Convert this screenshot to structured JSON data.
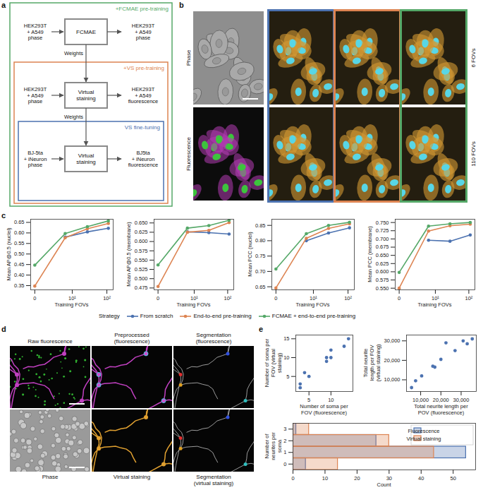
{
  "panels": {
    "a": {
      "letter": "a",
      "boxes": [
        {
          "title": "+FCMAE pre-training",
          "color": "#55A868",
          "input": "HEK293T + A549 phase",
          "model": "FCMAE",
          "output": "HEK293T + A549 phase",
          "weights": "Weights"
        },
        {
          "title": "+VS pre-training",
          "color": "#DD8452",
          "input": "HEK293T + A549 phase",
          "model": "Virtual staining",
          "output": "HEK293T + A549 fluorescence",
          "weights": "Weights"
        },
        {
          "title": "VS fine-tuning",
          "color": "#4C72B0",
          "input": "BJ-5ta + iNeuron phase",
          "model": "Virtual staining",
          "output": "BJ5ta + iNeuron fluorescence"
        }
      ]
    },
    "b": {
      "letter": "b",
      "left_labels": [
        "Phase",
        "Fluorescence"
      ],
      "row_labels": [
        "6 FOVs",
        "110 FOVs"
      ],
      "column_colors": [
        "#4C72B0",
        "#DD8452",
        "#55A868"
      ]
    },
    "c": {
      "letter": "c"
    },
    "d": {
      "letter": "d",
      "images": [
        "Raw fluorescence",
        "Preprocessed (fluorescence)",
        "Segmentation (fluorescence)",
        "Phase",
        "Virtual staining",
        "Segmentation (virtual staining)"
      ]
    },
    "e": {
      "letter": "e"
    }
  },
  "chart_data": [
    {
      "type": "line",
      "xlabel": "Training FOVs",
      "ylabel": "Mean AP@0.5 (nuclei)",
      "x": [
        0,
        6,
        28,
        110
      ],
      "log": "x",
      "xlim": [
        -0.3,
        150
      ],
      "xticks": [
        0,
        {
          "value": 10,
          "label": "10¹"
        },
        {
          "value": 100,
          "label": "10²"
        }
      ],
      "ylim": [
        0.33,
        0.665
      ],
      "yticks": [
        0.35,
        {
          "value": 0.4,
          "label": "0.40"
        },
        0.45,
        {
          "value": 0.5,
          "label": "0.50"
        },
        0.55,
        {
          "value": 0.6,
          "label": "0.60"
        },
        0.65
      ],
      "grid": false,
      "series": [
        {
          "name": "From scratch",
          "color": "#4C72B0",
          "marker": "circle",
          "values": [
            null,
            0.58,
            0.605,
            0.622
          ]
        },
        {
          "name": "End-to-end pre-training",
          "color": "#DD8452",
          "marker": "circle",
          "values": [
            0.348,
            0.577,
            0.62,
            0.645
          ]
        },
        {
          "name": "FCMAE + end-to-end pre-training",
          "color": "#55A868",
          "marker": "circle",
          "values": [
            0.447,
            0.597,
            0.63,
            0.657
          ]
        }
      ]
    },
    {
      "type": "line",
      "xlabel": "Training FOVs",
      "ylabel": "Mean AP@0.5 (membrane)",
      "x": [
        0,
        6,
        28,
        110
      ],
      "log": "x",
      "xlim": [
        -0.3,
        150
      ],
      "xticks": [
        0,
        {
          "value": 10,
          "label": "10¹"
        },
        {
          "value": 100,
          "label": "10²"
        }
      ],
      "ylim": [
        0.47,
        0.66
      ],
      "yticks": [
        0.475,
        {
          "value": 0.5,
          "label": "0.500"
        },
        0.525,
        {
          "value": 0.55,
          "label": "0.550"
        },
        0.575,
        {
          "value": 0.6,
          "label": "0.600"
        },
        0.625,
        {
          "value": 0.65,
          "label": "0.650"
        }
      ],
      "grid": false,
      "series": [
        {
          "name": "From scratch",
          "color": "#4C72B0",
          "marker": "circle",
          "values": [
            null,
            0.626,
            0.624,
            0.62
          ]
        },
        {
          "name": "End-to-end pre-training",
          "color": "#DD8452",
          "marker": "circle",
          "values": [
            0.479,
            0.625,
            0.63,
            0.651
          ]
        },
        {
          "name": "FCMAE + end-to-end pre-training",
          "color": "#55A868",
          "marker": "circle",
          "values": [
            0.537,
            0.636,
            0.643,
            0.657
          ]
        }
      ]
    },
    {
      "type": "line",
      "xlabel": "Training FOVs",
      "ylabel": "Mean PCC (nuclei)",
      "x": [
        0,
        6,
        28,
        110
      ],
      "log": "x",
      "xlim": [
        -0.3,
        150
      ],
      "xticks": [
        0,
        {
          "value": 10,
          "label": "10¹"
        },
        {
          "value": 100,
          "label": "10²"
        }
      ],
      "ylim": [
        0.64,
        0.87
      ],
      "yticks": [
        0.65,
        {
          "value": 0.7,
          "label": "0.70"
        },
        0.75,
        {
          "value": 0.8,
          "label": "0.80"
        },
        0.85
      ],
      "grid": false,
      "series": [
        {
          "name": "From scratch",
          "color": "#4C72B0",
          "marker": "circle",
          "values": [
            null,
            0.8,
            0.825,
            0.842
          ]
        },
        {
          "name": "End-to-end pre-training",
          "color": "#DD8452",
          "marker": "circle",
          "values": [
            0.646,
            0.808,
            0.84,
            0.855
          ]
        },
        {
          "name": "FCMAE + end-to-end pre-training",
          "color": "#55A868",
          "marker": "circle",
          "values": [
            0.708,
            0.823,
            0.85,
            0.86
          ]
        }
      ]
    },
    {
      "type": "line",
      "xlabel": "Training FOVs",
      "ylabel": "Mean PCC (membrane)",
      "x": [
        0,
        6,
        28,
        110
      ],
      "log": "x",
      "xlim": [
        -0.3,
        150
      ],
      "xticks": [
        0,
        {
          "value": 10,
          "label": "10¹"
        },
        {
          "value": 100,
          "label": "10²"
        }
      ],
      "ylim": [
        0.545,
        0.76
      ],
      "yticks": [
        {
          "value": 0.55,
          "label": "0.550"
        },
        0.575,
        {
          "value": 0.6,
          "label": "0.600"
        },
        0.625,
        {
          "value": 0.65,
          "label": "0.650"
        },
        0.675,
        {
          "value": 0.7,
          "label": "0.700"
        },
        0.725,
        {
          "value": 0.75,
          "label": "0.750"
        }
      ],
      "grid": false,
      "legend": "bottom",
      "legend_title": "Strategy",
      "series": [
        {
          "name": "From scratch",
          "color": "#4C72B0",
          "marker": "circle",
          "values": [
            null,
            0.696,
            0.693,
            0.712
          ]
        },
        {
          "name": "End-to-end pre-training",
          "color": "#DD8452",
          "marker": "circle",
          "values": [
            0.55,
            0.724,
            0.74,
            0.745
          ]
        },
        {
          "name": "FCMAE + end-to-end pre-training",
          "color": "#55A868",
          "marker": "circle",
          "values": [
            0.598,
            0.739,
            0.746,
            0.75
          ]
        }
      ]
    },
    {
      "type": "scatter",
      "xlabel": "Number of soma per FOV (fluorescence)",
      "ylabel": "Number of soma per FOV (virtual staining)",
      "x": [
        3,
        3,
        4,
        5,
        9,
        9,
        10,
        10,
        13,
        14
      ],
      "values": [
        2,
        3,
        6,
        5,
        9,
        10,
        12,
        10,
        13,
        15
      ],
      "color": "#4C72B0",
      "marker": "circle",
      "xlim": [
        2,
        15
      ],
      "xticks": [
        5,
        10
      ],
      "ylim": [
        1,
        16
      ],
      "yticks": [
        5,
        10,
        15
      ],
      "grid": false
    },
    {
      "type": "scatter",
      "xlabel": "Total neurite length per POV (fluorescence)",
      "ylabel": "Total neurite length per FOV (virtual staining)",
      "x": [
        5500,
        7500,
        10500,
        16000,
        17000,
        20000,
        22500,
        27000,
        31000,
        33000,
        35500
      ],
      "values": [
        6000,
        9500,
        12000,
        17000,
        16500,
        20500,
        29000,
        25000,
        30000,
        28500,
        31000
      ],
      "color": "#4C72B0",
      "marker": "circle",
      "xlim": [
        3000,
        37500
      ],
      "xticks": [
        {
          "value": 10000,
          "label": "10,000"
        },
        {
          "value": 20000,
          "label": "20,000"
        },
        {
          "value": 30000,
          "label": "30,000"
        }
      ],
      "ylim": [
        4000,
        33000
      ],
      "yticks": [
        {
          "value": 10000,
          "label": "10,000"
        },
        {
          "value": 20000,
          "label": "20,000"
        },
        {
          "value": 30000,
          "label": "30,000"
        }
      ],
      "grid": false
    },
    {
      "type": "histogram",
      "orientation": "horizontal",
      "xlabel": "Count",
      "ylabel": "Number of neurites per soma",
      "bins": [
        -0.5,
        0.5,
        1.5,
        2.5,
        3.5
      ],
      "series": [
        {
          "name": "Fluorescence",
          "color": "#4C72B0",
          "values": [
            4,
            54,
            26,
            1
          ]
        },
        {
          "name": "Virtual staining",
          "color": "#DD8452",
          "values": [
            14,
            44,
            30,
            5
          ]
        }
      ],
      "xlim": [
        0,
        57
      ],
      "xticks": [
        0,
        10,
        20,
        30,
        40,
        50
      ],
      "ylim": [
        -0.5,
        3.5
      ],
      "yticks": [
        0,
        1,
        2,
        3
      ],
      "grid": false,
      "legend": "upper right"
    }
  ]
}
